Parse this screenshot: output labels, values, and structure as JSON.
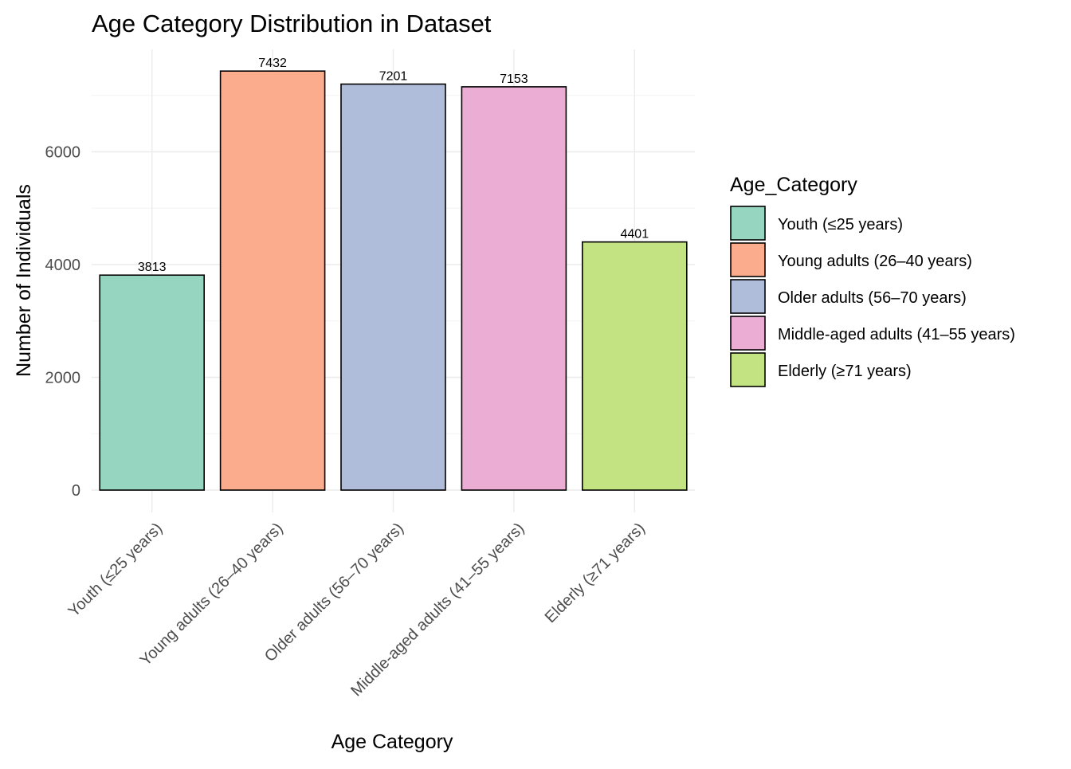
{
  "chart_data": {
    "type": "bar",
    "title": "Age Category Distribution in Dataset",
    "xlabel": "Age Category",
    "ylabel": "Number of Individuals",
    "categories": [
      "Youth (≤25 years)",
      "Young adults (26–40 years)",
      "Older adults (56–70 years)",
      "Middle-aged adults (41–55 years)",
      "Elderly (≥71 years)"
    ],
    "values": [
      3813,
      7432,
      7201,
      7153,
      4401
    ],
    "data_labels": [
      "3813",
      "7432",
      "7201",
      "7153",
      "4401"
    ],
    "colors": [
      "#96d5c0",
      "#fbac8d",
      "#afbcda",
      "#ecadd5",
      "#c3e382"
    ],
    "ylim": [
      0,
      7800
    ],
    "yticks": [
      0,
      2000,
      4000,
      6000
    ],
    "ytick_labels": [
      "0",
      "2000",
      "4000",
      "6000"
    ],
    "grid": true,
    "legend": {
      "title": "Age_Category",
      "placement": "right",
      "entries": [
        "Youth (≤25 years)",
        "Young adults (26–40 years)",
        "Older adults (56–70 years)",
        "Middle-aged adults (41–55 years)",
        "Elderly (≥71 years)"
      ]
    }
  }
}
